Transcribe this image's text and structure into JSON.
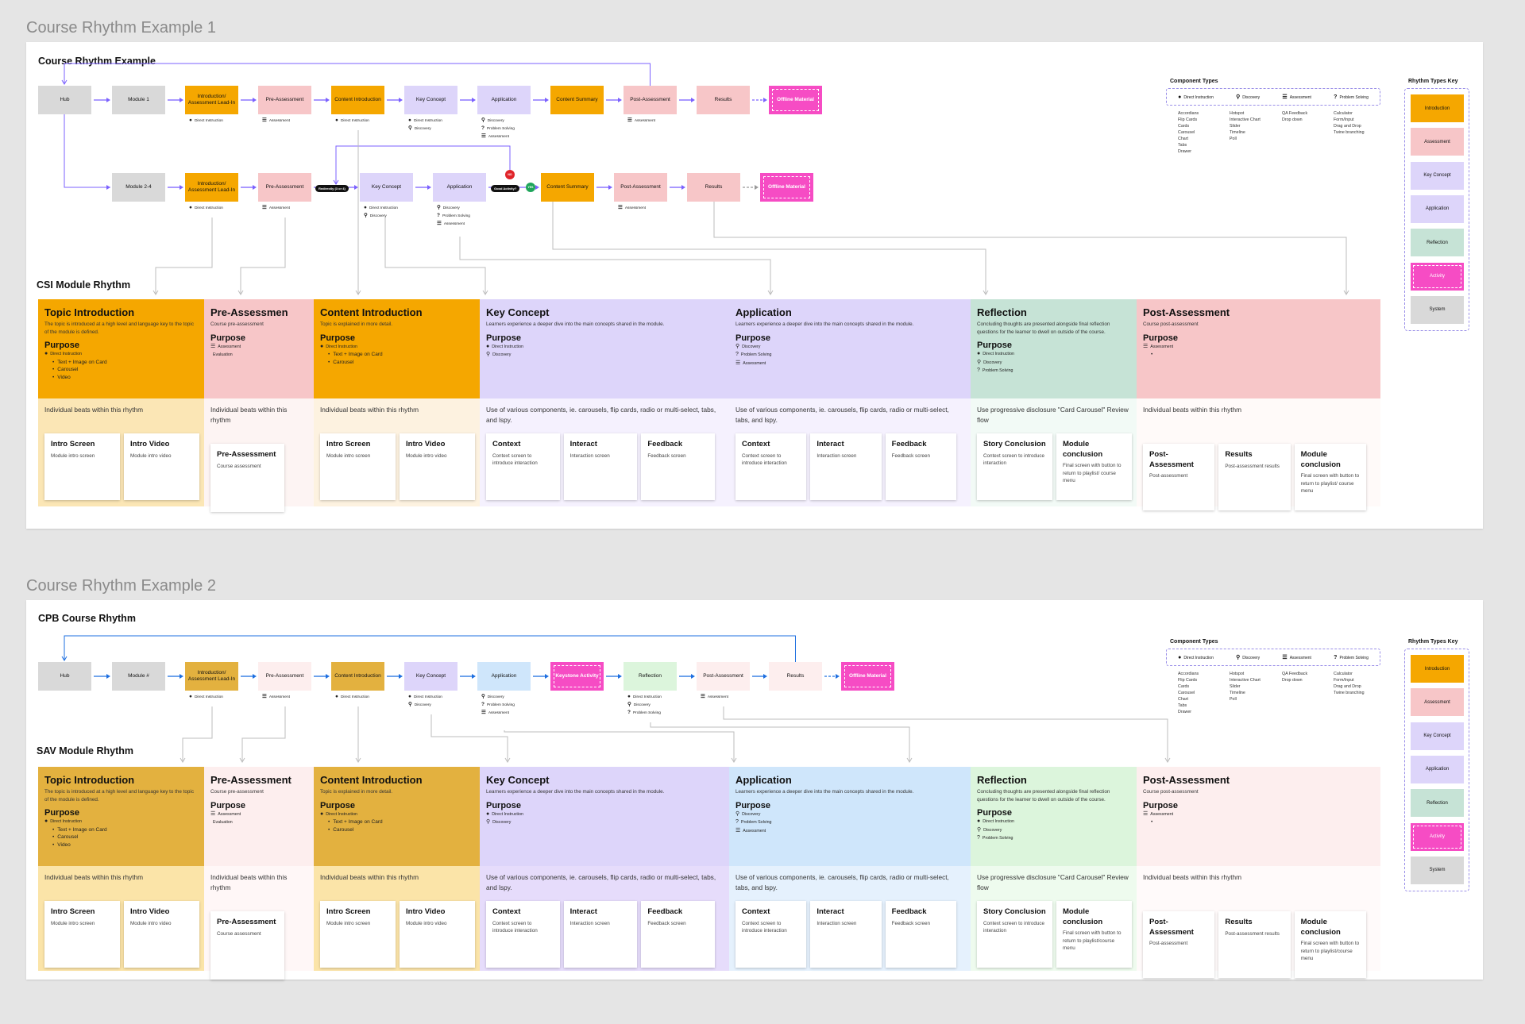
{
  "ex1": {
    "label": "Course Rhythm Example 1",
    "title": "Course Rhythm Example",
    "row1": [
      {
        "label": "Hub",
        "type": "system",
        "ann": []
      },
      {
        "label": "Module 1",
        "type": "system",
        "ann": []
      },
      {
        "label": "Introduction/ Assessment Lead-In",
        "type": "intro",
        "ann": [
          {
            "g": "●",
            "t": "Direct Instruction"
          }
        ]
      },
      {
        "label": "Pre-Assessment",
        "type": "assess",
        "ann": [
          {
            "g": "☰",
            "t": "Assessment"
          }
        ]
      },
      {
        "label": "Content Introduction",
        "type": "intro",
        "ann": [
          {
            "g": "●",
            "t": "Direct Instruction"
          }
        ]
      },
      {
        "label": "Key Concept",
        "type": "key",
        "ann": [
          {
            "g": "●",
            "t": "Direct Instruction"
          },
          {
            "g": "⚲",
            "t": "Discovery"
          }
        ]
      },
      {
        "label": "Application",
        "type": "app",
        "ann": [
          {
            "g": "⚲",
            "t": "Discovery"
          },
          {
            "g": "?",
            "t": "Problem Solving"
          },
          {
            "g": "☰",
            "t": "Assessment"
          }
        ]
      },
      {
        "label": "Content Summary",
        "type": "intro",
        "ann": []
      },
      {
        "label": "Post-Assessment",
        "type": "assess",
        "ann": [
          {
            "g": "☰",
            "t": "Assessment"
          }
        ]
      },
      {
        "label": "Results",
        "type": "assess",
        "ann": []
      },
      {
        "label": "Offline Material",
        "type": "activity",
        "ann": []
      }
    ],
    "row2": [
      {
        "label": "Module 2-4",
        "type": "system",
        "ann": []
      },
      {
        "label": "Introduction/ Assessment Lead-In",
        "type": "intro",
        "ann": [
          {
            "g": "●",
            "t": "Direct Instruction"
          }
        ]
      },
      {
        "label": "Pre-Assessment",
        "type": "assess",
        "ann": [
          {
            "g": "☰",
            "t": "Assessment"
          }
        ]
      },
      {
        "label": "Key Concept",
        "type": "key",
        "ann": [
          {
            "g": "●",
            "t": "Direct Instruction"
          },
          {
            "g": "⚲",
            "t": "Discovery"
          }
        ]
      },
      {
        "label": "Application",
        "type": "app",
        "ann": [
          {
            "g": "⚲",
            "t": "Discovery"
          },
          {
            "g": "?",
            "t": "Problem Solving"
          },
          {
            "g": "☰",
            "t": "Assessment"
          }
        ]
      },
      {
        "label": "Content Summary",
        "type": "intro",
        "ann": []
      },
      {
        "label": "Post-Assessment",
        "type": "assess",
        "ann": [
          {
            "g": "☰",
            "t": "Assessment"
          }
        ]
      },
      {
        "label": "Results",
        "type": "assess",
        "ann": []
      },
      {
        "label": "Offline Material",
        "type": "activity",
        "ann": []
      }
    ],
    "pill1": "Redirectly (3 or 4)",
    "pill2": "Good Activity?",
    "badge_no": "NO",
    "badge_yes": "YES",
    "section_title": "CSI Module Rhythm",
    "columns": [
      {
        "title": "Topic Introduction",
        "desc": "The topic is introduced at a high level and language key to the topic of the module is defined.",
        "purpose": "Purpose",
        "items": [
          {
            "g": "●",
            "t": "Direct Instruction"
          }
        ],
        "bullets": [
          "Text + Image on Card",
          "Carousel",
          "Video"
        ],
        "beats": "Individual beats within this rhythm",
        "cards": [
          {
            "t": "Intro Screen",
            "s": "Module intro screen"
          },
          {
            "t": "Intro Video",
            "s": "Module intro video"
          }
        ]
      },
      {
        "title": "Pre-Assessmen",
        "desc": "Course pre-assessment",
        "purpose": "Purpose",
        "items": [
          {
            "g": "☰",
            "t": "Assessment"
          },
          {
            "g": "",
            "t": "Evaluation"
          }
        ],
        "bullets": [],
        "beats": "Individual beats within this rhythm",
        "cards": [
          {
            "t": "Pre-Assessment",
            "s": "Course assessment"
          }
        ]
      },
      {
        "title": "Content Introduction",
        "desc": "Topic is explained in more detail.",
        "purpose": "Purpose",
        "items": [
          {
            "g": "●",
            "t": "Direct Instruction"
          }
        ],
        "bullets": [
          "Text + Image on Card",
          "Carousel"
        ],
        "beats": "Individual beats within this rhythm",
        "cards": [
          {
            "t": "Intro Screen",
            "s": "Module intro screen"
          },
          {
            "t": "Intro Video",
            "s": "Module intro video"
          }
        ]
      },
      {
        "title": "Key Concept",
        "desc": "Learners experience a deeper dive into the main concepts shared in the module.",
        "purpose": "Purpose",
        "items": [
          {
            "g": "●",
            "t": "Direct Instruction"
          },
          {
            "g": "⚲",
            "t": "Discovery"
          }
        ],
        "bullets": [],
        "beats": "Use of various components, ie. carousels, flip cards, radio or multi-select, tabs, and lspy.",
        "cards": [
          {
            "t": "Context",
            "s": "Context screen to introduce interaction"
          },
          {
            "t": "Interact",
            "s": "Interaction screen"
          },
          {
            "t": "Feedback",
            "s": "Feedback screen"
          }
        ]
      },
      {
        "title": "Application",
        "desc": "Learners experience a deeper dive into the main concepts shared in the module.",
        "purpose": "Purpose",
        "items": [
          {
            "g": "⚲",
            "t": "Discovery"
          },
          {
            "g": "?",
            "t": "Problem Solving"
          },
          {
            "g": "☰",
            "t": "Assessment"
          }
        ],
        "bullets": [],
        "beats": "Use of various components, ie. carousels, flip cards, radio or multi-select, tabs, and lspy.",
        "cards": [
          {
            "t": "Context",
            "s": "Context screen to introduce interaction"
          },
          {
            "t": "Interact",
            "s": "Interaction screen"
          },
          {
            "t": "Feedback",
            "s": "Feedback screen"
          }
        ]
      },
      {
        "title": "Reflection",
        "desc": "Concluding thoughts are presented alongside final reflection questions for the learner to dwell on outside of the course.",
        "purpose": "Purpose",
        "items": [
          {
            "g": "●",
            "t": "Direct Instruction"
          },
          {
            "g": "⚲",
            "t": "Discovery"
          },
          {
            "g": "?",
            "t": "Problem Solving"
          }
        ],
        "bullets": [],
        "beats": "Use progressive disclosure \"Card Carousel\" Review flow",
        "cards": [
          {
            "t": "Story Conclusion",
            "s": "Context screen to introduce interaction"
          },
          {
            "t": "Module conclusion",
            "s": "Final screen with button to return to playlist/ course menu"
          }
        ]
      },
      {
        "title": "Post-Assessment",
        "desc": "Course post-assessment",
        "purpose": "Purpose",
        "items": [
          {
            "g": "☰",
            "t": "Assessment"
          }
        ],
        "bullets": [
          ""
        ],
        "beats": "Individual beats within this rhythm",
        "cards": [
          {
            "t": "Post-Assessment",
            "s": "Post-assessment"
          },
          {
            "t": "Results",
            "s": "Post-assessment results"
          },
          {
            "t": "Module conclusion",
            "s": "Final screen with button to return to playlist/ course menu"
          }
        ]
      }
    ]
  },
  "ex2": {
    "label": "Course Rhythm Example 2",
    "title": "CPB Course Rhythm",
    "row1": [
      {
        "label": "Hub",
        "type": "system",
        "ann": []
      },
      {
        "label": "Module #",
        "type": "system",
        "ann": []
      },
      {
        "label": "Introduction/ Assessment Lead-In",
        "type": "intro2",
        "ann": [
          {
            "g": "●",
            "t": "Direct Instruction"
          }
        ]
      },
      {
        "label": "Pre-Assessment",
        "type": "assess2",
        "ann": [
          {
            "g": "☰",
            "t": "Assessment"
          }
        ]
      },
      {
        "label": "Content Introduction",
        "type": "intro2",
        "ann": [
          {
            "g": "●",
            "t": "Direct Instruction"
          }
        ]
      },
      {
        "label": "Key Concept",
        "type": "key",
        "ann": [
          {
            "g": "●",
            "t": "Direct Instruction"
          },
          {
            "g": "⚲",
            "t": "Discovery"
          }
        ]
      },
      {
        "label": "Application",
        "type": "app2",
        "ann": [
          {
            "g": "⚲",
            "t": "Discovery"
          },
          {
            "g": "?",
            "t": "Problem Solving"
          },
          {
            "g": "☰",
            "t": "Assessment"
          }
        ]
      },
      {
        "label": "Keystone Activity",
        "type": "activity",
        "ann": []
      },
      {
        "label": "Reflection",
        "type": "refl2",
        "ann": [
          {
            "g": "●",
            "t": "Direct Instruction"
          },
          {
            "g": "⚲",
            "t": "Discovery"
          },
          {
            "g": "?",
            "t": "Problem Solving"
          }
        ]
      },
      {
        "label": "Post-Assessment",
        "type": "assess2",
        "ann": [
          {
            "g": "☰",
            "t": "Assessment"
          }
        ]
      },
      {
        "label": "Results",
        "type": "assess2",
        "ann": []
      },
      {
        "label": "Offline Material",
        "type": "activity",
        "ann": []
      }
    ],
    "section_title": "SAV Module Rhythm",
    "columns": [
      {
        "title": "Topic Introduction",
        "desc": "The topic is introduced at a high level and language key to the topic of the module is defined.",
        "purpose": "Purpose",
        "items": [
          {
            "g": "●",
            "t": "Direct Instruction"
          }
        ],
        "bullets": [
          "Text + Image on Card",
          "Carousel",
          "Video"
        ],
        "beats": "Individual beats within this rhythm",
        "cards": [
          {
            "t": "Intro Screen",
            "s": "Module intro screen"
          },
          {
            "t": "Intro Video",
            "s": "Module intro video"
          }
        ]
      },
      {
        "title": "Pre-Assessment",
        "desc": "Course pre-assessment",
        "purpose": "Purpose",
        "items": [
          {
            "g": "☰",
            "t": "Assessment"
          },
          {
            "g": "",
            "t": "Evaluation"
          }
        ],
        "bullets": [],
        "beats": "Individual beats within this rhythm",
        "cards": [
          {
            "t": "Pre-Assessment",
            "s": "Course assessment"
          }
        ]
      },
      {
        "title": "Content Introduction",
        "desc": "Topic is explained in more detail.",
        "purpose": "Purpose",
        "items": [
          {
            "g": "●",
            "t": "Direct Instruction"
          }
        ],
        "bullets": [
          "Text + Image on Card",
          "Carousel"
        ],
        "beats": "Individual beats within this rhythm",
        "cards": [
          {
            "t": "Intro Screen",
            "s": "Module intro screen"
          },
          {
            "t": "Intro Video",
            "s": "Module intro video"
          }
        ]
      },
      {
        "title": "Key Concept",
        "desc": "Learners experience a deeper dive into the main concepts shared in the module.",
        "purpose": "Purpose",
        "items": [
          {
            "g": "●",
            "t": "Direct Instruction"
          },
          {
            "g": "⚲",
            "t": "Discovery"
          }
        ],
        "bullets": [],
        "beats": "Use of various components, ie. carousels, flip cards, radio or multi-select, tabs, and lspy.",
        "cards": [
          {
            "t": "Context",
            "s": "Context screen to introduce interaction"
          },
          {
            "t": "Interact",
            "s": "Interaction screen"
          },
          {
            "t": "Feedback",
            "s": "Feedback screen"
          }
        ]
      },
      {
        "title": "Application",
        "desc": "Learners experience a deeper dive into the main concepts shared in the module.",
        "purpose": "Purpose",
        "items": [
          {
            "g": "⚲",
            "t": "Discovery"
          },
          {
            "g": "?",
            "t": "Problem Solving"
          },
          {
            "g": "☰",
            "t": "Assessment"
          }
        ],
        "bullets": [],
        "beats": "Use of various components, ie. carousels, flip cards, radio or multi-select, tabs, and lspy.",
        "cards": [
          {
            "t": "Context",
            "s": "Context screen to introduce interaction"
          },
          {
            "t": "Interact",
            "s": "Interaction screen"
          },
          {
            "t": "Feedback",
            "s": "Feedback screen"
          }
        ]
      },
      {
        "title": "Reflection",
        "desc": "Concluding thoughts are presented alongside final reflection questions for the learner to dwell on outside of the course.",
        "purpose": "Purpose",
        "items": [
          {
            "g": "●",
            "t": "Direct Instruction"
          },
          {
            "g": "⚲",
            "t": "Discovery"
          },
          {
            "g": "?",
            "t": "Problem Solving"
          }
        ],
        "bullets": [],
        "beats": "Use progressive disclosure \"Card Carousel\" Review flow",
        "cards": [
          {
            "t": "Story Conclusion",
            "s": "Context screen to introduce interaction"
          },
          {
            "t": "Module conclusion",
            "s": "Final screen with button to return to playlist/course menu"
          }
        ]
      },
      {
        "title": "Post-Assessment",
        "desc": "Course post-assessment",
        "purpose": "Purpose",
        "items": [
          {
            "g": "☰",
            "t": "Assessment"
          }
        ],
        "bullets": [
          ""
        ],
        "beats": "Individual beats within this rhythm",
        "cards": [
          {
            "t": "Post-Assessment",
            "s": "Post-assessment"
          },
          {
            "t": "Results",
            "s": "Post-assessment results"
          },
          {
            "t": "Module conclusion",
            "s": "Final screen with button to return to playlist/course menu"
          }
        ]
      }
    ]
  },
  "legend": {
    "title": "Component Types",
    "types": [
      {
        "g": "●",
        "t": "Direct Instruction"
      },
      {
        "g": "⚲",
        "t": "Discovery"
      },
      {
        "g": "☰",
        "t": "Assessment"
      },
      {
        "g": "?",
        "t": "Problem Solving"
      }
    ],
    "cols": [
      "Accordians\nFlip Cards\nCards\nCarousel\nChart\nTabs\nDrawer",
      "Hotspot\nInteractive Chart\nSlider\nTimeline\nPoll",
      "QA Feedback\nDrop down",
      "Calculator\nForm/Input\nDrag and Drop\nTwine branching"
    ]
  },
  "key": {
    "title": "Rhythm Types Key",
    "items": [
      "Introduction",
      "Assessment",
      "Key Concept",
      "Application",
      "Reflection",
      "Activity",
      "System"
    ]
  },
  "colors": {
    "intro": "#f5a700",
    "intro2": "#e3b13f",
    "assess": "#f7c6c8",
    "assess2": "#fdeeee",
    "key": "#ddd5fa",
    "app": "#ddd5fa",
    "app2": "#cfe6fb",
    "refl": "#c6e3d6",
    "refl2": "#dcf5dc",
    "activity": "#f64cc4",
    "system": "#d9d9d9",
    "arrow1": "#7b61ff",
    "arrow2": "#1e6fe0"
  }
}
